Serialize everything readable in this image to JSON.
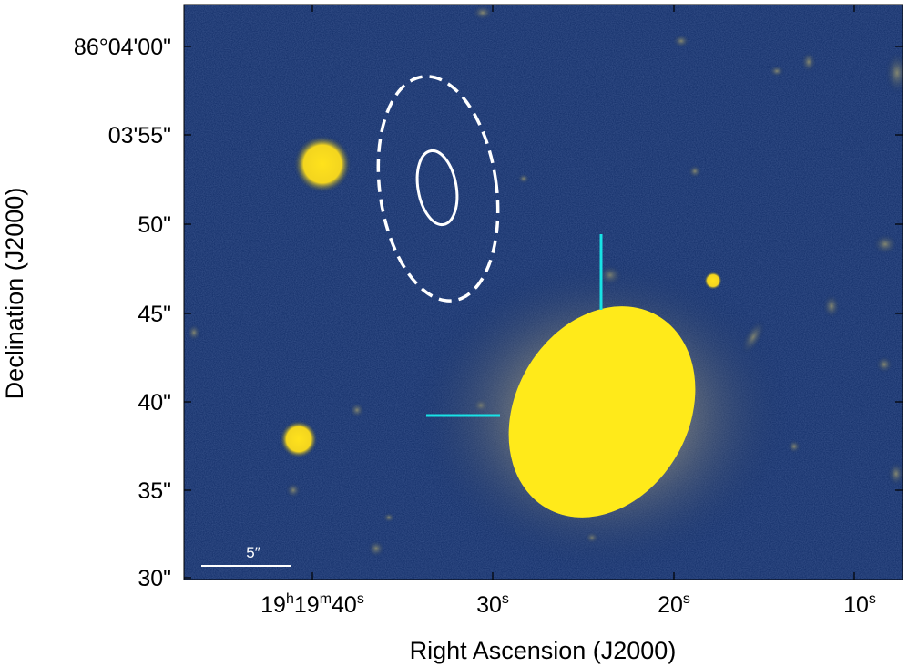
{
  "figure": {
    "x_axis_label": "Right Ascension (J2000)",
    "y_axis_label": "Declination (J2000)",
    "x_tick_labels": [
      {
        "base": "19",
        "h": "h",
        "mid": "19",
        "m": "m",
        "sec": "40",
        "s": "s"
      },
      {
        "sec": "30",
        "s": "s"
      },
      {
        "sec": "20",
        "s": "s"
      },
      {
        "sec": "10",
        "s": "s"
      }
    ],
    "y_tick_labels": [
      "86°04'00\"",
      "03'55\"",
      "50\"",
      "45\"",
      "40\"",
      "35\"",
      "30\""
    ],
    "scale_bar_label": "5″",
    "colors": {
      "background": "#0f2b66",
      "source": "#ffea1a",
      "marker": "#18e3e6",
      "ellipse": "#ffffff"
    }
  }
}
